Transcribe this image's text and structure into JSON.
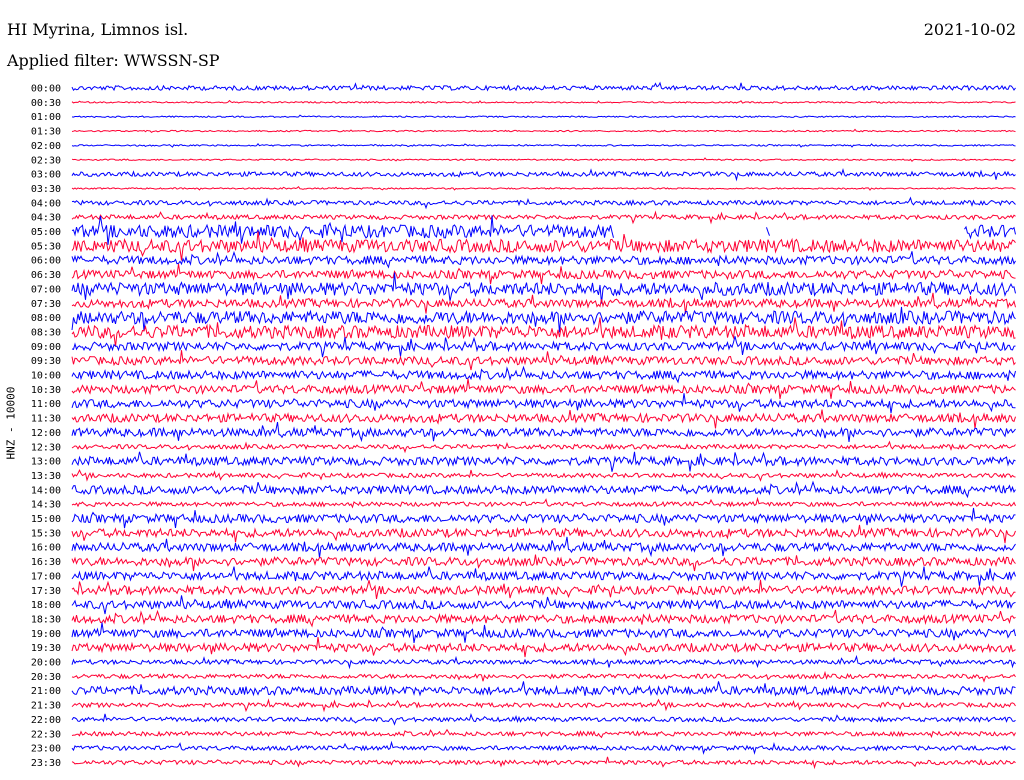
{
  "header": {
    "station": "HI Myrina, Limnos isl.",
    "date": "2021-10-02",
    "filter_text": "Applied filter: WWSSN-SP"
  },
  "chart_data": {
    "type": "line",
    "title": "HI Myrina, Limnos isl.",
    "ylabel": "HNZ - 10000",
    "grid": false,
    "trace_colors": [
      "#0000ff",
      "#ff0033"
    ],
    "rows": [
      {
        "time": "00:00",
        "amp": 1,
        "gaps": []
      },
      {
        "time": "00:30",
        "amp": 0,
        "gaps": []
      },
      {
        "time": "01:00",
        "amp": 0,
        "gaps": []
      },
      {
        "time": "01:30",
        "amp": 0,
        "gaps": []
      },
      {
        "time": "02:00",
        "amp": 0,
        "gaps": []
      },
      {
        "time": "02:30",
        "amp": 0,
        "gaps": []
      },
      {
        "time": "03:00",
        "amp": 1,
        "gaps": []
      },
      {
        "time": "03:30",
        "amp": 0,
        "gaps": []
      },
      {
        "time": "04:00",
        "amp": 1,
        "gaps": []
      },
      {
        "time": "04:30",
        "amp": 1,
        "gaps": []
      },
      {
        "time": "05:00",
        "amp": 3,
        "gaps": [
          [
            0.575,
            0.735
          ],
          [
            0.74,
            0.945
          ]
        ]
      },
      {
        "time": "05:30",
        "amp": 3,
        "gaps": []
      },
      {
        "time": "06:00",
        "amp": 2,
        "gaps": []
      },
      {
        "time": "06:30",
        "amp": 2,
        "gaps": []
      },
      {
        "time": "07:00",
        "amp": 3,
        "gaps": []
      },
      {
        "time": "07:30",
        "amp": 2,
        "gaps": []
      },
      {
        "time": "08:00",
        "amp": 3,
        "gaps": []
      },
      {
        "time": "08:30",
        "amp": 3,
        "gaps": []
      },
      {
        "time": "09:00",
        "amp": 2,
        "gaps": []
      },
      {
        "time": "09:30",
        "amp": 2,
        "gaps": []
      },
      {
        "time": "10:00",
        "amp": 2,
        "gaps": []
      },
      {
        "time": "10:30",
        "amp": 2,
        "gaps": []
      },
      {
        "time": "11:00",
        "amp": 2,
        "gaps": []
      },
      {
        "time": "11:30",
        "amp": 2,
        "gaps": []
      },
      {
        "time": "12:00",
        "amp": 2,
        "gaps": []
      },
      {
        "time": "12:30",
        "amp": 1,
        "gaps": []
      },
      {
        "time": "13:00",
        "amp": 2,
        "gaps": []
      },
      {
        "time": "13:30",
        "amp": 1,
        "gaps": []
      },
      {
        "time": "14:00",
        "amp": 2,
        "gaps": []
      },
      {
        "time": "14:30",
        "amp": 1,
        "gaps": []
      },
      {
        "time": "15:00",
        "amp": 2,
        "gaps": []
      },
      {
        "time": "15:30",
        "amp": 2,
        "gaps": []
      },
      {
        "time": "16:00",
        "amp": 2,
        "gaps": []
      },
      {
        "time": "16:30",
        "amp": 2,
        "gaps": []
      },
      {
        "time": "17:00",
        "amp": 2,
        "gaps": []
      },
      {
        "time": "17:30",
        "amp": 2,
        "gaps": []
      },
      {
        "time": "18:00",
        "amp": 2,
        "gaps": []
      },
      {
        "time": "18:30",
        "amp": 2,
        "gaps": []
      },
      {
        "time": "19:00",
        "amp": 2,
        "gaps": []
      },
      {
        "time": "19:30",
        "amp": 2,
        "gaps": []
      },
      {
        "time": "20:00",
        "amp": 1,
        "gaps": []
      },
      {
        "time": "20:30",
        "amp": 1,
        "gaps": []
      },
      {
        "time": "21:00",
        "amp": 2,
        "gaps": []
      },
      {
        "time": "21:30",
        "amp": 1,
        "gaps": []
      },
      {
        "time": "22:00",
        "amp": 1,
        "gaps": []
      },
      {
        "time": "22:30",
        "amp": 1,
        "gaps": []
      },
      {
        "time": "23:00",
        "amp": 1,
        "gaps": []
      },
      {
        "time": "23:30",
        "amp": 1,
        "gaps": []
      }
    ]
  }
}
